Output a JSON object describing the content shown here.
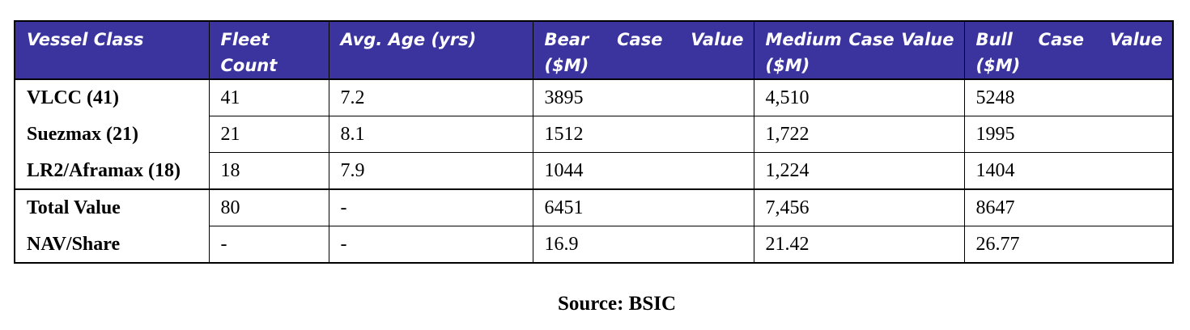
{
  "table": {
    "headers": [
      "Vessel Class",
      "Fleet Count",
      "Avg. Age (yrs)",
      "Bear Case Value ($M)",
      "Medium Case Value ($M)",
      "Bull Case Value ($M)"
    ],
    "rows": [
      [
        "VLCC (41)",
        "41",
        "7.2",
        "3895",
        "4,510",
        "5248"
      ],
      [
        "Suezmax (21)",
        "21",
        "8.1",
        "1512",
        "1,722",
        "1995"
      ],
      [
        "LR2/Aframax (18)",
        "18",
        "7.9",
        "1044",
        "1,224",
        "1404"
      ],
      [
        "Total Value",
        "80",
        "-",
        "6451",
        "7,456",
        "8647"
      ],
      [
        "NAV/Share",
        "-",
        "-",
        "16.9",
        "21.42",
        "26.77"
      ]
    ]
  },
  "caption": "Source: BSIC"
}
